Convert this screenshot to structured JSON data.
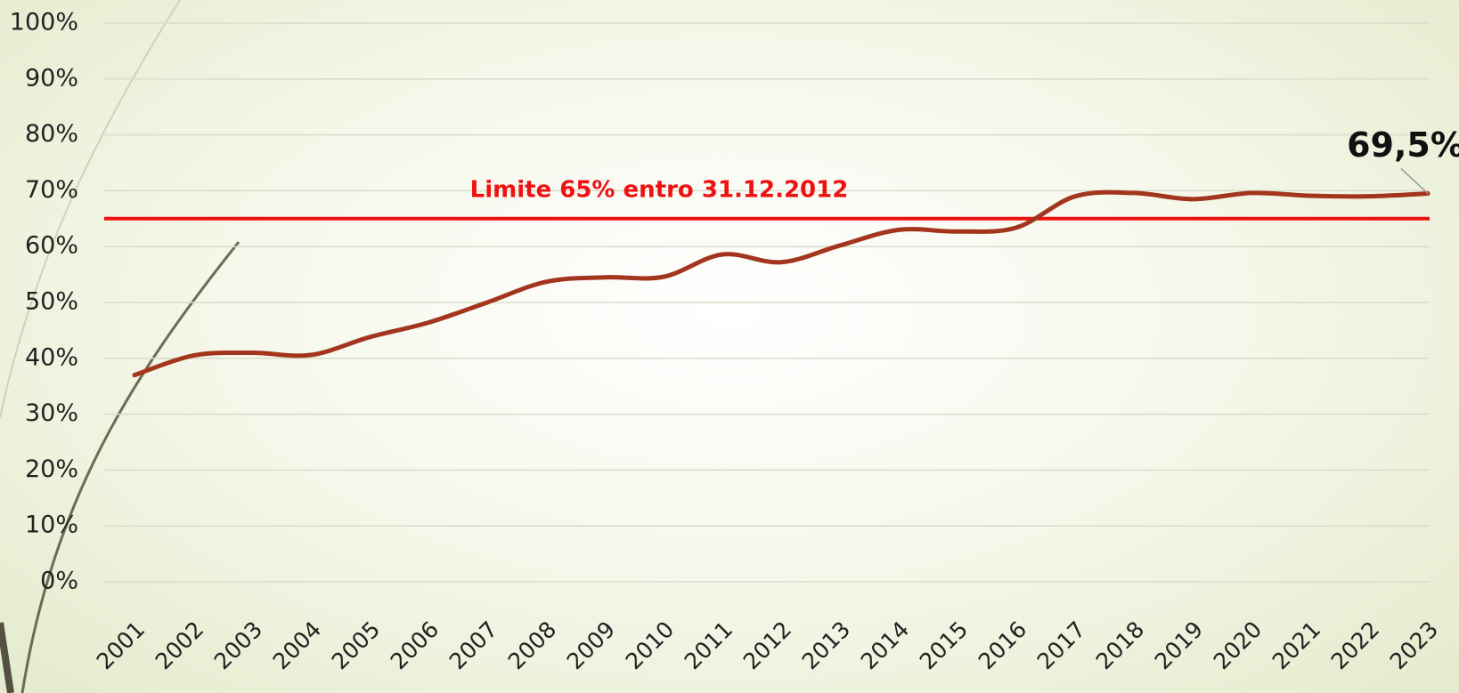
{
  "chart_data": {
    "type": "line",
    "categories": [
      "2001",
      "2002",
      "2003",
      "2004",
      "2005",
      "2006",
      "2007",
      "2008",
      "2009",
      "2010",
      "2011",
      "2012",
      "2013",
      "2014",
      "2015",
      "2016",
      "2017",
      "2018",
      "2019",
      "2020",
      "2021",
      "2022",
      "2023"
    ],
    "series": [
      {
        "color": "#a3351d",
        "values": [
          37,
          40.5,
          41,
          40.6,
          43.8,
          46.4,
          50,
          53.7,
          54.5,
          54.6,
          58.6,
          57.2,
          60.2,
          63,
          62.7,
          63.4,
          69,
          69.6,
          68.5,
          69.6,
          69.1,
          69,
          69.5
        ],
        "value_labels": [
          null,
          null,
          null,
          null,
          null,
          null,
          null,
          null,
          null,
          null,
          null,
          null,
          null,
          null,
          null,
          null,
          null,
          null,
          null,
          null,
          null,
          null,
          "69,5%"
        ]
      }
    ],
    "threshold": {
      "value": 65,
      "label": "Limite 65% entro 31.12.2012",
      "color": "#ee1111"
    },
    "ylim": [
      0,
      100
    ],
    "yticks": [
      {
        "value": 0,
        "label": "0%"
      },
      {
        "value": 10,
        "label": "10%"
      },
      {
        "value": 20,
        "label": "20%"
      },
      {
        "value": 30,
        "label": "30%"
      },
      {
        "value": 40,
        "label": "40%"
      },
      {
        "value": 50,
        "label": "50%"
      },
      {
        "value": 60,
        "label": "60%"
      },
      {
        "value": 70,
        "label": "70%"
      },
      {
        "value": 80,
        "label": "80%"
      },
      {
        "value": 90,
        "label": "90%"
      },
      {
        "value": 100,
        "label": "100%"
      }
    ],
    "grid": true
  }
}
